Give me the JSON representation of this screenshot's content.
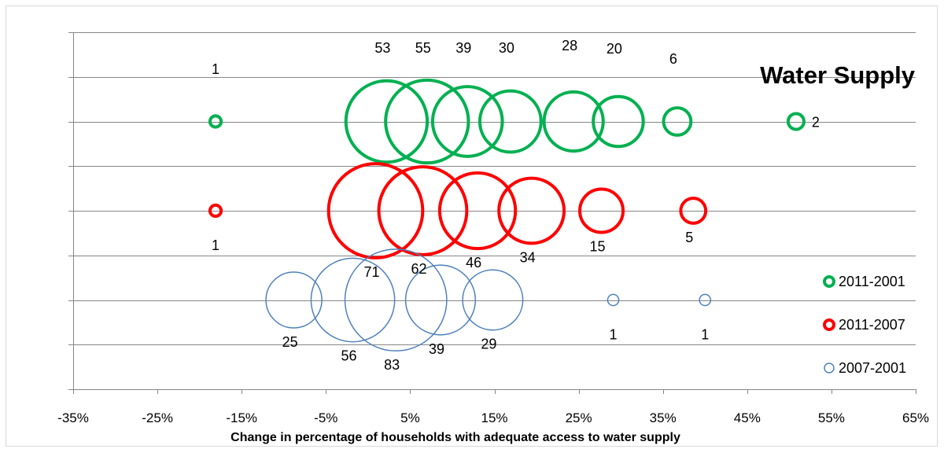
{
  "chart_data": {
    "type": "bubble",
    "title": "Water Supply",
    "xlabel": "Change in percentage of households with adequate access to water supply",
    "xlim": [
      -35,
      65
    ],
    "x_tick_labels": [
      "-35%",
      "-25%",
      "-15%",
      "-5%",
      "5%",
      "15%",
      "25%",
      "35%",
      "45%",
      "55%",
      "65%"
    ],
    "x_ticks": [
      -35,
      -25,
      -15,
      -5,
      5,
      15,
      25,
      35,
      45,
      55,
      65
    ],
    "ylim": [
      0,
      4
    ],
    "grid": true,
    "legend_position": "right",
    "series": [
      {
        "name": "2011-2001",
        "color": "#00b050",
        "y": 3,
        "label_position": "above",
        "points": [
          {
            "x": -18.1,
            "size": 1
          },
          {
            "x": 2.2,
            "size": 53
          },
          {
            "x": 7.0,
            "size": 55
          },
          {
            "x": 11.8,
            "size": 39
          },
          {
            "x": 16.9,
            "size": 30
          },
          {
            "x": 24.4,
            "size": 28
          },
          {
            "x": 29.7,
            "size": 20
          },
          {
            "x": 36.7,
            "size": 6
          },
          {
            "x": 50.8,
            "size": 2
          }
        ]
      },
      {
        "name": "2011-2007",
        "color": "#ff0000",
        "y": 2,
        "label_position": "below",
        "points": [
          {
            "x": -18.1,
            "size": 1
          },
          {
            "x": 0.9,
            "size": 71
          },
          {
            "x": 6.5,
            "size": 62
          },
          {
            "x": 13.0,
            "size": 46
          },
          {
            "x": 19.4,
            "size": 34
          },
          {
            "x": 27.7,
            "size": 15
          },
          {
            "x": 38.6,
            "size": 5
          }
        ]
      },
      {
        "name": "2007-2001",
        "color": "#4f81bd",
        "y": 1,
        "label_position": "below",
        "points": [
          {
            "x": -8.8,
            "size": 25
          },
          {
            "x": -1.8,
            "size": 56
          },
          {
            "x": 3.3,
            "size": 83
          },
          {
            "x": 8.6,
            "size": 39
          },
          {
            "x": 14.8,
            "size": 29
          },
          {
            "x": 29.1,
            "size": 1
          },
          {
            "x": 40.0,
            "size": 1
          }
        ]
      }
    ]
  }
}
